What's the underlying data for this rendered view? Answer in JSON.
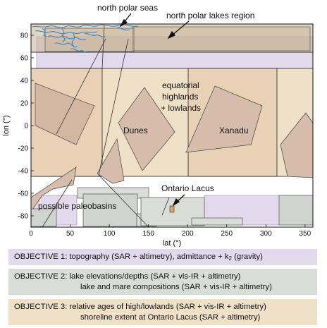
{
  "colors": {
    "objective1": "#e3d9ec",
    "objective2": "#d9dcd8",
    "objective3": "#efe0c8",
    "highlight": "#d2b5a2",
    "lakes": "#3f86c8"
  },
  "axes": {
    "xlabel": "lat (°)",
    "ylabel": "lon (°)",
    "x_ticks": [
      "0",
      "50",
      "100",
      "150",
      "200",
      "250",
      "300",
      "350"
    ],
    "y_ticks": [
      "80",
      "60",
      "40",
      "20",
      "0",
      "-20",
      "-40",
      "-60",
      "-80"
    ],
    "xlim": [
      0,
      360
    ],
    "ylim": [
      -90,
      90
    ]
  },
  "labels": {
    "north_polar_seas": "north polar seas",
    "north_polar_lakes": "north polar lakes region",
    "equatorial_1": "equatorial",
    "equatorial_2": "highlands",
    "equatorial_3": "+ lowlands",
    "dunes": "Dunes",
    "xanadu": "Xanadu",
    "ontario": "Ontario Lacus",
    "paleobasins": "possible paleobasins"
  },
  "legend": {
    "obj1_pre": "OBJECTIVE 1: topography (SAR + altimetry), admittance + k",
    "obj1_sub": "2",
    "obj1_post": " (gravity)",
    "obj2_line1": "OBJECTIVE 2: lake elevations/depths (SAR + vis-IR + altimetry)",
    "obj2_line2": "lake and mare compositions (SAR + vis-IR + altimetry)",
    "obj3_line1": "OBJECTIVE 3: relative ages of high/lowlands (SAR + vis-IR + altimetry)",
    "obj3_line2": "shoreline extent at Ontario Lacus (SAR + altimetry)"
  }
}
